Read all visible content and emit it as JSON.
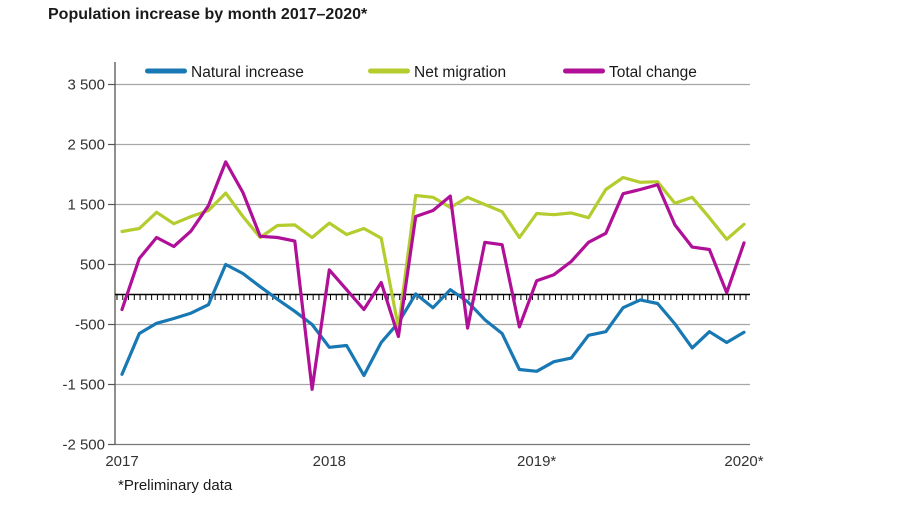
{
  "title": "Population increase by month 2017–2020*",
  "footnote": "*Preliminary data",
  "legend": [
    {
      "label": "Natural increase",
      "color": "#1878b4"
    },
    {
      "label": "Net migration",
      "color": "#b5cc2e"
    },
    {
      "label": "Total change",
      "color": "#b00f97"
    }
  ],
  "axes": {
    "y": {
      "ticks": [
        {
          "label": "3 500",
          "value": 3500
        },
        {
          "label": "2 500",
          "value": 2500
        },
        {
          "label": "1 500",
          "value": 1500
        },
        {
          "label": "500",
          "value": 500
        },
        {
          "label": "-500",
          "value": -500
        },
        {
          "label": "-1 500",
          "value": -1500
        },
        {
          "label": "-2 500",
          "value": -2500
        }
      ]
    },
    "x": {
      "ticks": [
        {
          "label": "2017",
          "month_index": 0
        },
        {
          "label": "2018",
          "month_index": 12
        },
        {
          "label": "2019*",
          "month_index": 24
        },
        {
          "label": "2020*",
          "month_index": 36
        }
      ]
    }
  },
  "chart_data": {
    "type": "line",
    "title": "Population increase by month 2017–2020*",
    "xlabel": "",
    "ylabel": "",
    "ylim": [
      -2500,
      3500
    ],
    "grid": true,
    "legend_position": "top-inside",
    "categories": [
      "2017-01",
      "2017-02",
      "2017-03",
      "2017-04",
      "2017-05",
      "2017-06",
      "2017-07",
      "2017-08",
      "2017-09",
      "2017-10",
      "2017-11",
      "2017-12",
      "2018-01",
      "2018-02",
      "2018-03",
      "2018-04",
      "2018-05",
      "2018-06",
      "2018-07",
      "2018-08",
      "2018-09",
      "2018-10",
      "2018-11",
      "2018-12",
      "2019-01",
      "2019-02",
      "2019-03",
      "2019-04",
      "2019-05",
      "2019-06",
      "2019-07",
      "2019-08",
      "2019-09",
      "2019-10",
      "2019-11",
      "2019-12",
      "2020-01"
    ],
    "series": [
      {
        "name": "Natural increase",
        "color": "#1878b4",
        "values": [
          -1330,
          -650,
          -480,
          -400,
          -310,
          -170,
          500,
          350,
          130,
          -80,
          -280,
          -500,
          -880,
          -850,
          -1350,
          -800,
          -470,
          10,
          -220,
          80,
          -120,
          -420,
          -650,
          -1250,
          -1280,
          -1120,
          -1060,
          -680,
          -620,
          -220,
          -90,
          -150,
          -490,
          -890,
          -620,
          -800,
          -630
        ]
      },
      {
        "name": "Net migration",
        "color": "#b5cc2e",
        "values": [
          1050,
          1100,
          1370,
          1180,
          1300,
          1400,
          1690,
          1300,
          950,
          1150,
          1160,
          950,
          1190,
          1000,
          1100,
          940,
          -550,
          1650,
          1620,
          1450,
          1620,
          1500,
          1380,
          950,
          1350,
          1330,
          1360,
          1280,
          1750,
          1950,
          1870,
          1880,
          1520,
          1620,
          1280,
          920,
          1170
        ]
      },
      {
        "name": "Total change",
        "color": "#b00f97",
        "values": [
          -250,
          600,
          950,
          800,
          1060,
          1480,
          2210,
          1700,
          970,
          950,
          890,
          -1580,
          410,
          80,
          -250,
          200,
          -700,
          1300,
          1400,
          1640,
          -560,
          870,
          830,
          -540,
          230,
          330,
          550,
          870,
          1020,
          1680,
          1750,
          1830,
          1160,
          790,
          750,
          30,
          860
        ]
      }
    ]
  }
}
